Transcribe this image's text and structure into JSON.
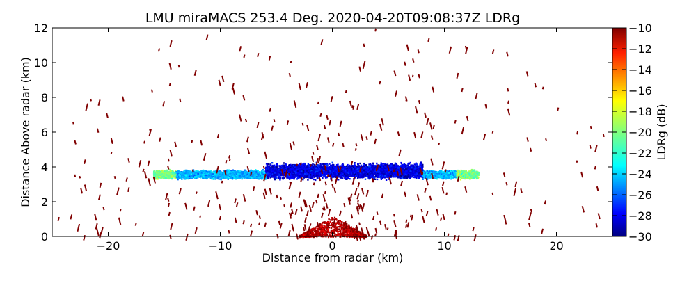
{
  "chart_data": {
    "type": "heatmap",
    "title": "LMU miraMACS 253.4 Deg. 2020-04-20T09:08:37Z  LDRg",
    "xlabel": "Distance from radar (km)",
    "ylabel": "Distance Above radar  (km)",
    "xlim": [
      -25,
      25
    ],
    "ylim": [
      0,
      12
    ],
    "x_ticks": [
      -20,
      -10,
      0,
      10,
      20
    ],
    "x_tick_labels": [
      "−20",
      "−10",
      "0",
      "10",
      "20"
    ],
    "y_ticks": [
      0,
      2,
      4,
      6,
      8,
      10,
      12
    ],
    "y_tick_labels": [
      "0",
      "2",
      "4",
      "6",
      "8",
      "10",
      "12"
    ],
    "colorbar": {
      "label": "LDRg (dB)",
      "range": [
        -30,
        -10
      ],
      "ticks": [
        -10,
        -12,
        -14,
        -16,
        -18,
        -20,
        -22,
        -24,
        -26,
        -28,
        -30
      ],
      "tick_labels": [
        "−10",
        "−12",
        "−14",
        "−16",
        "−18",
        "−20",
        "−22",
        "−24",
        "−26",
        "−28",
        "−30"
      ],
      "colormap": "jet",
      "colors": [
        "#00007f",
        "#0000ff",
        "#007fff",
        "#00ffff",
        "#7fff7f",
        "#ffff00",
        "#ff7f00",
        "#ff0000",
        "#7f0000"
      ]
    },
    "cloud_layer": {
      "description": "melting-layer band",
      "x_range_km": [
        -16,
        13
      ],
      "core_x_range_km": [
        -6,
        8
      ],
      "center_height_km": 3.8,
      "core_ldr_db": -28,
      "edge_ldr_db": -22
    },
    "near_radar_echo": {
      "x_range_km": [
        -3,
        3
      ],
      "height_range_km": [
        0,
        1.2
      ],
      "ldr_db": -11
    },
    "noise_speckle_ldr_db": -10
  }
}
